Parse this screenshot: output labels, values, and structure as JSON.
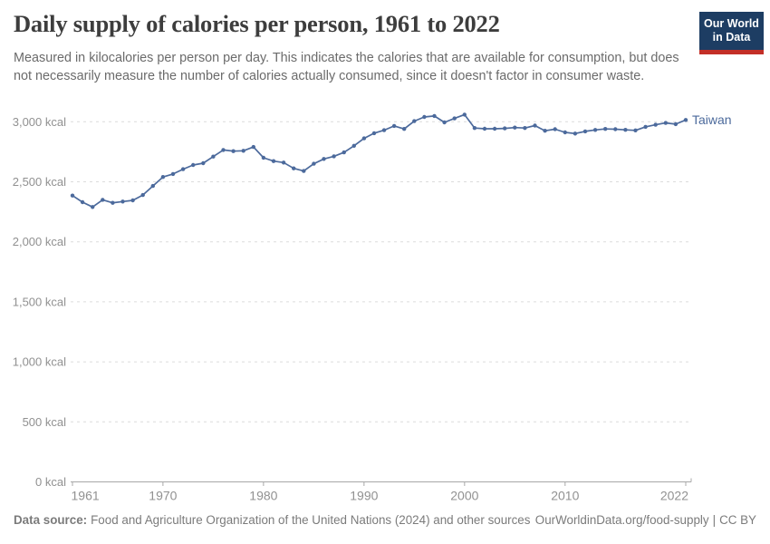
{
  "header": {
    "title": "Daily supply of calories per person, 1961 to 2022",
    "subtitle": "Measured in kilocalories per person per day. This indicates the calories that are available for consumption, but does not necessarily measure the number of calories actually consumed, since it doesn't factor in consumer waste.",
    "logo": {
      "line1": "Our World",
      "line2": "in Data"
    }
  },
  "footer": {
    "source_label": "Data source:",
    "source_text": "Food and Agriculture Organization of the United Nations (2024) and other sources",
    "link": "OurWorldinData.org/food-supply",
    "separator": "|",
    "license": "CC BY"
  },
  "colors": {
    "line_blue": "#4c6a9c",
    "logo_navy": "#1d3d63",
    "logo_red": "#c32f27",
    "gridline": "#dcdcdc",
    "axis": "#a8a8a8",
    "tick_label": "#919191"
  },
  "chart_data": {
    "type": "line",
    "title": "Daily supply of calories per person, 1961 to 2022",
    "entity": "Taiwan",
    "unit": "kcal",
    "xlim": [
      1961,
      2022
    ],
    "ylim": [
      0,
      3000
    ],
    "grid": "horizontal-dashed",
    "legend_position": "end-of-line-label",
    "xticks": [
      1961,
      1970,
      1980,
      1990,
      2000,
      2010,
      2022
    ],
    "yticks": [
      0,
      500,
      1000,
      1500,
      2000,
      2500,
      3000
    ],
    "ytick_labels": [
      "0 kcal",
      "500 kcal",
      "1,000 kcal",
      "1,500 kcal",
      "2,000 kcal",
      "2,500 kcal",
      "3,000 kcal"
    ],
    "x": [
      1961,
      1962,
      1963,
      1964,
      1965,
      1966,
      1967,
      1968,
      1969,
      1970,
      1971,
      1972,
      1973,
      1974,
      1975,
      1976,
      1977,
      1978,
      1979,
      1980,
      1981,
      1982,
      1983,
      1984,
      1985,
      1986,
      1987,
      1988,
      1989,
      1990,
      1991,
      1992,
      1993,
      1994,
      1995,
      1996,
      1997,
      1998,
      1999,
      2000,
      2001,
      2002,
      2003,
      2004,
      2005,
      2006,
      2007,
      2008,
      2009,
      2010,
      2011,
      2012,
      2013,
      2014,
      2015,
      2016,
      2017,
      2018,
      2019,
      2020,
      2021,
      2022
    ],
    "series": [
      {
        "name": "Taiwan",
        "color": "#4c6a9c",
        "values": [
          2385,
          2330,
          2290,
          2350,
          2325,
          2335,
          2345,
          2390,
          2465,
          2540,
          2565,
          2605,
          2640,
          2655,
          2710,
          2765,
          2755,
          2758,
          2790,
          2700,
          2672,
          2660,
          2612,
          2590,
          2650,
          2690,
          2712,
          2745,
          2800,
          2862,
          2905,
          2930,
          2965,
          2940,
          3005,
          3040,
          3048,
          2995,
          3028,
          3060,
          2948,
          2942,
          2942,
          2945,
          2952,
          2948,
          2968,
          2925,
          2938,
          2912,
          2902,
          2920,
          2932,
          2940,
          2938,
          2933,
          2928,
          2958,
          2975,
          2990,
          2980,
          3015
        ]
      }
    ]
  }
}
